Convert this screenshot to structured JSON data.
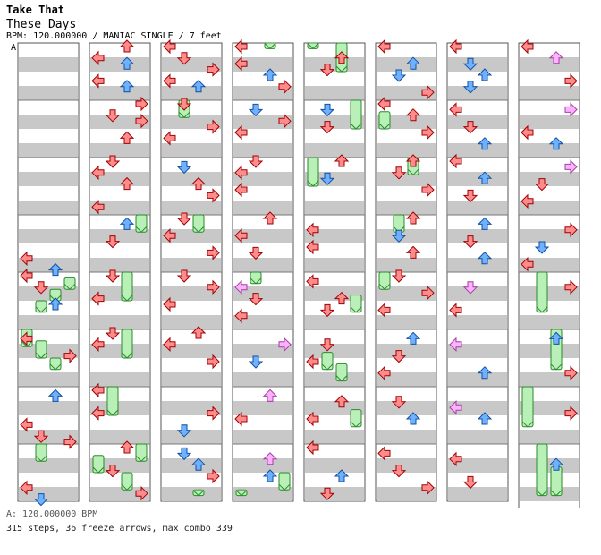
{
  "song": {
    "artist": "Take That",
    "title": "These Days",
    "info_line": "BPM: 120.000000 / MANIAC SINGLE / 7 feet"
  },
  "bpm_marker": "A",
  "footer": {
    "bpm_line": "A: 120.000000 BPM",
    "stats_line": "315 steps, 36 freeze arrows, max combo 339"
  },
  "colors": {
    "red_arrow": "#ff8c8c",
    "blue_arrow": "#6fb0ff",
    "pink_arrow": "#ffb0ff",
    "freeze": "#b8f0b8",
    "stripe": "#c8c8c8",
    "outline": "#a00000"
  },
  "chart_data": {
    "type": "step-chart",
    "lanes": [
      "left",
      "down",
      "up",
      "right"
    ],
    "columns": 8,
    "measures_per_column": 8,
    "notes": [
      {
        "c": 0,
        "m": 3,
        "b": 7,
        "l": 0
      },
      {
        "c": 0,
        "m": 4,
        "b": 0,
        "l": 0
      },
      {
        "c": 0,
        "m": 3,
        "b": 9,
        "l": 2
      },
      {
        "c": 0,
        "m": 4,
        "b": 2,
        "l": 1
      },
      {
        "c": 0,
        "m": 4,
        "b": 5,
        "l": 2
      },
      {
        "c": 0,
        "m": 5,
        "b": 1,
        "l": 0
      },
      {
        "c": 0,
        "m": 5,
        "b": 4,
        "l": 3
      },
      {
        "c": 0,
        "m": 6,
        "b": 1,
        "l": 2
      },
      {
        "c": 0,
        "m": 6,
        "b": 6,
        "l": 0
      },
      {
        "c": 0,
        "m": 6,
        "b": 8,
        "l": 1
      },
      {
        "c": 0,
        "m": 6,
        "b": 9,
        "l": 3
      },
      {
        "c": 0,
        "m": 7,
        "b": 7,
        "l": 0
      },
      {
        "c": 0,
        "m": 7,
        "b": 9,
        "l": 1
      },
      {
        "c": 1,
        "m": 0,
        "b": 0,
        "l": 2
      },
      {
        "c": 1,
        "m": 0,
        "b": 2,
        "l": 0
      },
      {
        "c": 1,
        "m": 0,
        "b": 3,
        "l": 2
      },
      {
        "c": 1,
        "m": 0,
        "b": 6,
        "l": 0
      },
      {
        "c": 1,
        "m": 0,
        "b": 7,
        "l": 2
      },
      {
        "c": 1,
        "m": 1,
        "b": 0,
        "l": 3
      },
      {
        "c": 1,
        "m": 1,
        "b": 2,
        "l": 1
      },
      {
        "c": 1,
        "m": 1,
        "b": 3,
        "l": 3
      },
      {
        "c": 1,
        "m": 1,
        "b": 6,
        "l": 2
      },
      {
        "c": 1,
        "m": 2,
        "b": 0,
        "l": 1
      },
      {
        "c": 1,
        "m": 2,
        "b": 2,
        "l": 0
      },
      {
        "c": 1,
        "m": 2,
        "b": 4,
        "l": 2
      },
      {
        "c": 1,
        "m": 2,
        "b": 8,
        "l": 0
      },
      {
        "c": 1,
        "m": 3,
        "b": 1,
        "l": 2
      },
      {
        "c": 1,
        "m": 3,
        "b": 4,
        "l": 1
      },
      {
        "c": 1,
        "m": 4,
        "b": 0,
        "l": 1
      },
      {
        "c": 1,
        "m": 4,
        "b": 4,
        "l": 0
      },
      {
        "c": 1,
        "m": 5,
        "b": 0,
        "l": 1
      },
      {
        "c": 1,
        "m": 5,
        "b": 2,
        "l": 0
      },
      {
        "c": 1,
        "m": 6,
        "b": 0,
        "l": 0
      },
      {
        "c": 1,
        "m": 6,
        "b": 4,
        "l": 0
      },
      {
        "c": 1,
        "m": 7,
        "b": 0,
        "l": 2
      },
      {
        "c": 1,
        "m": 7,
        "b": 4,
        "l": 1
      },
      {
        "c": 1,
        "m": 7,
        "b": 8,
        "l": 3
      },
      {
        "c": 2,
        "m": 0,
        "b": 0,
        "l": 0
      },
      {
        "c": 2,
        "m": 0,
        "b": 2,
        "l": 1
      },
      {
        "c": 2,
        "m": 0,
        "b": 4,
        "l": 3
      },
      {
        "c": 2,
        "m": 0,
        "b": 6,
        "l": 0
      },
      {
        "c": 2,
        "m": 0,
        "b": 7,
        "l": 2
      },
      {
        "c": 2,
        "m": 1,
        "b": 0,
        "l": 1
      },
      {
        "c": 2,
        "m": 1,
        "b": 4,
        "l": 3
      },
      {
        "c": 2,
        "m": 1,
        "b": 6,
        "l": 0
      },
      {
        "c": 2,
        "m": 2,
        "b": 1,
        "l": 1
      },
      {
        "c": 2,
        "m": 2,
        "b": 4,
        "l": 2
      },
      {
        "c": 2,
        "m": 2,
        "b": 6,
        "l": 3
      },
      {
        "c": 2,
        "m": 3,
        "b": 0,
        "l": 1
      },
      {
        "c": 2,
        "m": 3,
        "b": 3,
        "l": 0
      },
      {
        "c": 2,
        "m": 3,
        "b": 6,
        "l": 3
      },
      {
        "c": 2,
        "m": 4,
        "b": 0,
        "l": 1
      },
      {
        "c": 2,
        "m": 4,
        "b": 2,
        "l": 3
      },
      {
        "c": 2,
        "m": 4,
        "b": 5,
        "l": 0
      },
      {
        "c": 2,
        "m": 5,
        "b": 0,
        "l": 2
      },
      {
        "c": 2,
        "m": 5,
        "b": 2,
        "l": 0
      },
      {
        "c": 2,
        "m": 5,
        "b": 5,
        "l": 3
      },
      {
        "c": 2,
        "m": 6,
        "b": 4,
        "l": 3
      },
      {
        "c": 2,
        "m": 6,
        "b": 7,
        "l": 1
      },
      {
        "c": 2,
        "m": 7,
        "b": 1,
        "l": 1
      },
      {
        "c": 2,
        "m": 7,
        "b": 3,
        "l": 2
      },
      {
        "c": 2,
        "m": 7,
        "b": 5,
        "l": 3
      },
      {
        "c": 3,
        "m": 0,
        "b": 0,
        "l": 0
      },
      {
        "c": 3,
        "m": 0,
        "b": 3,
        "l": 0
      },
      {
        "c": 3,
        "m": 0,
        "b": 5,
        "l": 2
      },
      {
        "c": 3,
        "m": 0,
        "b": 7,
        "l": 3
      },
      {
        "c": 3,
        "m": 1,
        "b": 1,
        "l": 1
      },
      {
        "c": 3,
        "m": 1,
        "b": 3,
        "l": 3
      },
      {
        "c": 3,
        "m": 1,
        "b": 5,
        "l": 0
      },
      {
        "c": 3,
        "m": 2,
        "b": 0,
        "l": 1
      },
      {
        "c": 3,
        "m": 2,
        "b": 2,
        "l": 0
      },
      {
        "c": 3,
        "m": 2,
        "b": 5,
        "l": 0
      },
      {
        "c": 3,
        "m": 3,
        "b": 0,
        "l": 2
      },
      {
        "c": 3,
        "m": 3,
        "b": 3,
        "l": 0
      },
      {
        "c": 3,
        "m": 3,
        "b": 6,
        "l": 1
      },
      {
        "c": 3,
        "m": 4,
        "b": 2,
        "l": 0,
        "pink": true
      },
      {
        "c": 3,
        "m": 4,
        "b": 4,
        "l": 1
      },
      {
        "c": 3,
        "m": 4,
        "b": 7,
        "l": 0
      },
      {
        "c": 3,
        "m": 5,
        "b": 2,
        "l": 3,
        "pink": true
      },
      {
        "c": 3,
        "m": 5,
        "b": 5,
        "l": 1
      },
      {
        "c": 3,
        "m": 6,
        "b": 1,
        "l": 2,
        "pink": true
      },
      {
        "c": 3,
        "m": 6,
        "b": 5,
        "l": 0
      },
      {
        "c": 3,
        "m": 7,
        "b": 2,
        "l": 2,
        "pink": true
      },
      {
        "c": 3,
        "m": 7,
        "b": 5,
        "l": 2
      },
      {
        "c": 4,
        "m": 0,
        "b": 2,
        "l": 2
      },
      {
        "c": 4,
        "m": 0,
        "b": 4,
        "l": 1
      },
      {
        "c": 4,
        "m": 1,
        "b": 1,
        "l": 1
      },
      {
        "c": 4,
        "m": 1,
        "b": 4,
        "l": 1
      },
      {
        "c": 4,
        "m": 2,
        "b": 0,
        "l": 2
      },
      {
        "c": 4,
        "m": 2,
        "b": 3,
        "l": 1
      },
      {
        "c": 4,
        "m": 3,
        "b": 2,
        "l": 0
      },
      {
        "c": 4,
        "m": 3,
        "b": 5,
        "l": 0
      },
      {
        "c": 4,
        "m": 4,
        "b": 1,
        "l": 0
      },
      {
        "c": 4,
        "m": 4,
        "b": 4,
        "l": 2
      },
      {
        "c": 4,
        "m": 4,
        "b": 6,
        "l": 1
      },
      {
        "c": 4,
        "m": 5,
        "b": 2,
        "l": 1
      },
      {
        "c": 4,
        "m": 5,
        "b": 5,
        "l": 0
      },
      {
        "c": 4,
        "m": 6,
        "b": 2,
        "l": 2
      },
      {
        "c": 4,
        "m": 6,
        "b": 5,
        "l": 0
      },
      {
        "c": 4,
        "m": 7,
        "b": 0,
        "l": 0
      },
      {
        "c": 4,
        "m": 7,
        "b": 5,
        "l": 2
      },
      {
        "c": 4,
        "m": 7,
        "b": 8,
        "l": 1
      },
      {
        "c": 5,
        "m": 0,
        "b": 0,
        "l": 0
      },
      {
        "c": 5,
        "m": 0,
        "b": 3,
        "l": 2
      },
      {
        "c": 5,
        "m": 0,
        "b": 5,
        "l": 1
      },
      {
        "c": 5,
        "m": 0,
        "b": 8,
        "l": 3
      },
      {
        "c": 5,
        "m": 1,
        "b": 0,
        "l": 0
      },
      {
        "c": 5,
        "m": 1,
        "b": 2,
        "l": 2
      },
      {
        "c": 5,
        "m": 1,
        "b": 5,
        "l": 3
      },
      {
        "c": 5,
        "m": 2,
        "b": 0,
        "l": 2
      },
      {
        "c": 5,
        "m": 2,
        "b": 2,
        "l": 1
      },
      {
        "c": 5,
        "m": 2,
        "b": 5,
        "l": 3
      },
      {
        "c": 5,
        "m": 3,
        "b": 0,
        "l": 2
      },
      {
        "c": 5,
        "m": 3,
        "b": 3,
        "l": 1
      },
      {
        "c": 5,
        "m": 3,
        "b": 6,
        "l": 2
      },
      {
        "c": 5,
        "m": 4,
        "b": 0,
        "l": 1
      },
      {
        "c": 5,
        "m": 4,
        "b": 3,
        "l": 3
      },
      {
        "c": 5,
        "m": 4,
        "b": 6,
        "l": 0
      },
      {
        "c": 5,
        "m": 5,
        "b": 1,
        "l": 2
      },
      {
        "c": 5,
        "m": 5,
        "b": 4,
        "l": 1
      },
      {
        "c": 5,
        "m": 5,
        "b": 7,
        "l": 0
      },
      {
        "c": 5,
        "m": 6,
        "b": 2,
        "l": 1
      },
      {
        "c": 5,
        "m": 6,
        "b": 5,
        "l": 2
      },
      {
        "c": 5,
        "m": 7,
        "b": 1,
        "l": 0
      },
      {
        "c": 5,
        "m": 7,
        "b": 4,
        "l": 1
      },
      {
        "c": 5,
        "m": 7,
        "b": 7,
        "l": 3
      },
      {
        "c": 6,
        "m": 0,
        "b": 0,
        "l": 0
      },
      {
        "c": 6,
        "m": 0,
        "b": 3,
        "l": 1
      },
      {
        "c": 6,
        "m": 0,
        "b": 5,
        "l": 2
      },
      {
        "c": 6,
        "m": 0,
        "b": 7,
        "l": 1
      },
      {
        "c": 6,
        "m": 1,
        "b": 1,
        "l": 0
      },
      {
        "c": 6,
        "m": 1,
        "b": 4,
        "l": 1
      },
      {
        "c": 6,
        "m": 1,
        "b": 7,
        "l": 2
      },
      {
        "c": 6,
        "m": 2,
        "b": 0,
        "l": 0
      },
      {
        "c": 6,
        "m": 2,
        "b": 3,
        "l": 2
      },
      {
        "c": 6,
        "m": 2,
        "b": 6,
        "l": 1
      },
      {
        "c": 6,
        "m": 3,
        "b": 1,
        "l": 2
      },
      {
        "c": 6,
        "m": 3,
        "b": 4,
        "l": 1
      },
      {
        "c": 6,
        "m": 3,
        "b": 7,
        "l": 2
      },
      {
        "c": 6,
        "m": 4,
        "b": 2,
        "l": 1,
        "pink": true
      },
      {
        "c": 6,
        "m": 4,
        "b": 6,
        "l": 0
      },
      {
        "c": 6,
        "m": 5,
        "b": 2,
        "l": 0,
        "pink": true
      },
      {
        "c": 6,
        "m": 5,
        "b": 7,
        "l": 2
      },
      {
        "c": 6,
        "m": 6,
        "b": 3,
        "l": 0,
        "pink": true
      },
      {
        "c": 6,
        "m": 6,
        "b": 5,
        "l": 2
      },
      {
        "c": 6,
        "m": 7,
        "b": 2,
        "l": 0
      },
      {
        "c": 6,
        "m": 7,
        "b": 6,
        "l": 1
      },
      {
        "c": 7,
        "m": 0,
        "b": 0,
        "l": 0
      },
      {
        "c": 7,
        "m": 0,
        "b": 2,
        "l": 2,
        "pink": true
      },
      {
        "c": 7,
        "m": 0,
        "b": 6,
        "l": 3
      },
      {
        "c": 7,
        "m": 1,
        "b": 1,
        "l": 3,
        "pink": true
      },
      {
        "c": 7,
        "m": 1,
        "b": 5,
        "l": 0
      },
      {
        "c": 7,
        "m": 1,
        "b": 7,
        "l": 2
      },
      {
        "c": 7,
        "m": 2,
        "b": 1,
        "l": 3,
        "pink": true
      },
      {
        "c": 7,
        "m": 2,
        "b": 4,
        "l": 1
      },
      {
        "c": 7,
        "m": 2,
        "b": 7,
        "l": 0
      },
      {
        "c": 7,
        "m": 3,
        "b": 2,
        "l": 3
      },
      {
        "c": 7,
        "m": 3,
        "b": 5,
        "l": 1
      },
      {
        "c": 7,
        "m": 3,
        "b": 8,
        "l": 0
      },
      {
        "c": 7,
        "m": 4,
        "b": 2,
        "l": 3
      },
      {
        "c": 7,
        "m": 5,
        "b": 1,
        "l": 2
      },
      {
        "c": 7,
        "m": 5,
        "b": 7,
        "l": 3
      },
      {
        "c": 7,
        "m": 6,
        "b": 4,
        "l": 3
      },
      {
        "c": 7,
        "m": 7,
        "b": 3,
        "l": 2
      }
    ],
    "freezes": [
      {
        "c": 0,
        "l": 3,
        "m": 4,
        "b0": 1,
        "b1": 3
      },
      {
        "c": 0,
        "l": 2,
        "m": 4,
        "b0": 3,
        "b1": 5
      },
      {
        "c": 0,
        "l": 1,
        "m": 4,
        "b0": 5,
        "b1": 7
      },
      {
        "c": 0,
        "l": 0,
        "m": 5,
        "b0": 0,
        "b1": 3
      },
      {
        "c": 0,
        "l": 1,
        "m": 5,
        "b0": 2,
        "b1": 5
      },
      {
        "c": 0,
        "l": 2,
        "m": 5,
        "b0": 5,
        "b1": 7
      },
      {
        "c": 0,
        "l": 1,
        "m": 7,
        "b0": 0,
        "b1": 3
      },
      {
        "c": 1,
        "l": 3,
        "m": 3,
        "b0": 0,
        "b1": 3
      },
      {
        "c": 1,
        "l": 2,
        "m": 4,
        "b0": 0,
        "b1": 5
      },
      {
        "c": 1,
        "l": 2,
        "m": 5,
        "b0": 0,
        "b1": 5
      },
      {
        "c": 1,
        "l": 1,
        "m": 6,
        "b0": 0,
        "b1": 5
      },
      {
        "c": 1,
        "l": 3,
        "m": 7,
        "b0": 0,
        "b1": 3
      },
      {
        "c": 1,
        "l": 0,
        "m": 7,
        "b0": 2,
        "b1": 5
      },
      {
        "c": 1,
        "l": 2,
        "m": 7,
        "b0": 5,
        "b1": 8
      },
      {
        "c": 2,
        "l": 1,
        "m": 1,
        "b0": 0,
        "b1": 3
      },
      {
        "c": 2,
        "l": 2,
        "m": 3,
        "b0": 0,
        "b1": 3
      },
      {
        "c": 2,
        "l": 2,
        "m": 7,
        "b0": 8,
        "b1": 9
      },
      {
        "c": 3,
        "l": 2,
        "m": 0,
        "b0": 0,
        "b1": 1
      },
      {
        "c": 3,
        "l": 1,
        "m": 4,
        "b0": 0,
        "b1": 2
      },
      {
        "c": 3,
        "l": 3,
        "m": 7,
        "b0": 5,
        "b1": 8
      },
      {
        "c": 3,
        "l": 0,
        "m": 7,
        "b0": 8,
        "b1": 9
      },
      {
        "c": 4,
        "l": 0,
        "m": 0,
        "b0": 0,
        "b1": 1
      },
      {
        "c": 4,
        "l": 2,
        "m": 0,
        "b0": 0,
        "b1": 5
      },
      {
        "c": 4,
        "l": 3,
        "m": 1,
        "b0": 0,
        "b1": 5
      },
      {
        "c": 4,
        "l": 0,
        "m": 2,
        "b0": 0,
        "b1": 5
      },
      {
        "c": 4,
        "l": 3,
        "m": 4,
        "b0": 4,
        "b1": 7
      },
      {
        "c": 4,
        "l": 1,
        "m": 5,
        "b0": 4,
        "b1": 7
      },
      {
        "c": 4,
        "l": 2,
        "m": 5,
        "b0": 6,
        "b1": 9
      },
      {
        "c": 4,
        "l": 3,
        "m": 6,
        "b0": 4,
        "b1": 7
      },
      {
        "c": 5,
        "l": 0,
        "m": 1,
        "b0": 2,
        "b1": 5
      },
      {
        "c": 5,
        "l": 2,
        "m": 2,
        "b0": 0,
        "b1": 3
      },
      {
        "c": 5,
        "l": 1,
        "m": 3,
        "b0": 0,
        "b1": 3
      },
      {
        "c": 5,
        "l": 0,
        "m": 4,
        "b0": 0,
        "b1": 3
      },
      {
        "c": 7,
        "l": 1,
        "m": 4,
        "b0": 0,
        "b1": 7
      },
      {
        "c": 7,
        "l": 2,
        "m": 5,
        "b0": 0,
        "b1": 7
      },
      {
        "c": 7,
        "l": 0,
        "m": 6,
        "b0": 0,
        "b1": 7
      },
      {
        "c": 7,
        "l": 1,
        "m": 7,
        "b0": 0,
        "b1": 9
      },
      {
        "c": 7,
        "l": 2,
        "m": 7,
        "b0": 4,
        "b1": 9
      }
    ]
  }
}
